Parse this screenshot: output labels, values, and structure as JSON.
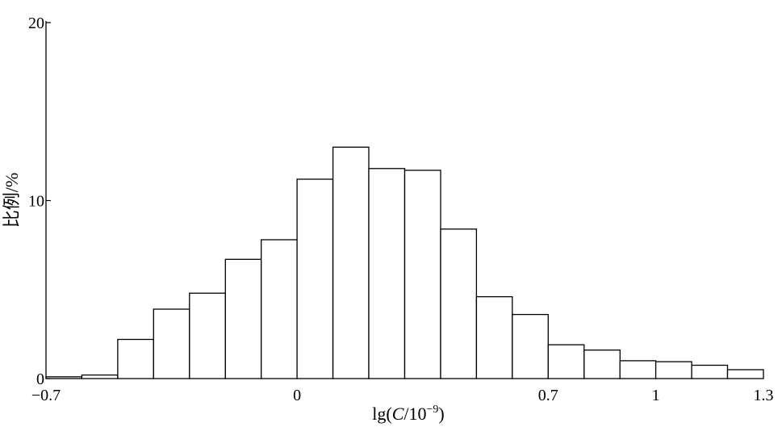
{
  "chart_data": {
    "type": "bar",
    "title": "",
    "xlabel": "lg(C/10⁻⁹)",
    "ylabel": "比例/%",
    "xlim": [
      -0.7,
      1.3
    ],
    "ylim": [
      0,
      20
    ],
    "x_ticks": [
      -0.7,
      0,
      0.7,
      1,
      1.3
    ],
    "x_tick_labels": [
      "−0.7",
      "0",
      "0.7",
      "1",
      "1.3"
    ],
    "y_ticks": [
      0,
      10,
      20
    ],
    "y_tick_labels": [
      "0",
      "10",
      "20"
    ],
    "bin_edges": [
      -0.7,
      -0.6,
      -0.5,
      -0.4,
      -0.3,
      -0.2,
      -0.1,
      0,
      0.1,
      0.2,
      0.3,
      0.4,
      0.5,
      0.6,
      0.7,
      0.8,
      0.9,
      1.0,
      1.1,
      1.2,
      1.3
    ],
    "values": [
      0.1,
      0.2,
      2.2,
      3.9,
      4.8,
      6.7,
      7.8,
      11.2,
      13.0,
      11.8,
      11.7,
      8.4,
      4.6,
      3.6,
      1.9,
      1.6,
      1.0,
      0.95,
      0.75,
      0.5
    ],
    "grid": false,
    "legend": "none"
  }
}
